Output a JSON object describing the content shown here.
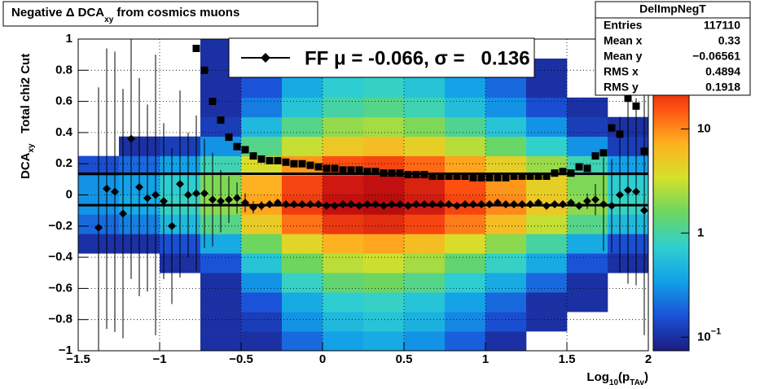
{
  "chart_data": {
    "type": "heatmap-profile",
    "title": [
      "Negative Δ DCA",
      "xy",
      " from cosmics muons"
    ],
    "xlabel": [
      "Log",
      "10",
      "(p",
      "TAv",
      ")"
    ],
    "ylabel": [
      "DCA",
      "xy",
      "   Total chi2 Cut"
    ],
    "xlim": [
      -1.5,
      2
    ],
    "xticks": [
      {
        "value": -1.5,
        "label": "−1.5"
      },
      {
        "value": -1,
        "label": "−1"
      },
      {
        "value": -0.5,
        "label": "−0.5"
      },
      0,
      0.5,
      1,
      1.5,
      2
    ],
    "ylim": [
      -1,
      1
    ],
    "yticks": [
      {
        "value": -1,
        "label": "−1"
      },
      {
        "value": -0.8,
        "label": "−0.8"
      },
      {
        "value": -0.6,
        "label": "−0.6"
      },
      {
        "value": -0.4,
        "label": "−0.4"
      },
      {
        "value": -0.2,
        "label": "−0.2"
      },
      0,
      0.2,
      0.4,
      0.6,
      0.8,
      1
    ],
    "grid": true,
    "zlim": [
      0.074,
      73
    ],
    "zlog": true,
    "zticks": [
      {
        "value": 0.1,
        "label": "10",
        "exponent": "−1"
      },
      1,
      10
    ],
    "palette": [
      "#1b1b80",
      "#1a52d8",
      "#12a0e8",
      "#2fd0d0",
      "#6cd660",
      "#d6e02a",
      "#ffb020",
      "#ff5010",
      "#c81010",
      "#7a0000"
    ],
    "heatmap": {
      "xbins": [
        -1.5,
        -1.25,
        -1,
        -0.75,
        -0.5,
        -0.25,
        0,
        0.25,
        0.5,
        0.75,
        1,
        1.25,
        1.5,
        1.75,
        2
      ],
      "ybins": [
        -1,
        -0.875,
        -0.75,
        -0.625,
        -0.5,
        -0.375,
        -0.25,
        -0.125,
        0,
        0.125,
        0.25,
        0.375,
        0.5,
        0.625,
        0.75,
        0.875,
        1
      ],
      "z": [
        [
          0,
          0,
          0,
          0,
          0,
          0.1,
          0.2,
          0.3,
          0.3,
          0.15,
          0,
          0,
          0,
          0,
          0,
          0
        ],
        [
          0,
          0,
          0,
          0,
          0,
          0.1,
          0.25,
          0.4,
          0.35,
          0.2,
          0.1,
          0,
          0,
          0,
          0,
          0
        ],
        [
          0,
          0,
          0,
          0,
          0.1,
          0.15,
          0.5,
          0.8,
          0.7,
          0.35,
          0.12,
          0,
          0,
          0,
          0,
          0
        ],
        [
          0.1,
          0.1,
          0.1,
          0.1,
          0.16,
          0.4,
          1.2,
          2,
          1.8,
          0.9,
          0.3,
          0.12,
          0.1,
          0.1,
          0.1,
          0.1
        ],
        [
          0.1,
          0.12,
          0.16,
          0.3,
          0.6,
          1.6,
          4.8,
          8,
          7.2,
          3.6,
          1.2,
          0.5,
          0.24,
          0.16,
          0.12,
          0.1
        ],
        [
          0.2,
          0.3,
          0.4,
          0.8,
          1.6,
          4,
          12,
          20,
          18,
          9,
          3,
          1.2,
          0.6,
          0.4,
          0.3,
          0.2
        ],
        [
          0.35,
          0.5,
          0.7,
          1.4,
          2.8,
          7,
          21,
          35,
          31,
          16,
          5,
          2.1,
          1,
          0.7,
          0.5,
          0.35
        ],
        [
          0.4,
          0.6,
          0.8,
          1.6,
          3.2,
          8,
          24,
          40,
          36,
          18,
          6,
          2.4,
          1.2,
          0.8,
          0.6,
          0.4
        ],
        [
          0.3,
          0.45,
          0.6,
          1.2,
          2.4,
          6,
          18,
          30,
          27,
          13,
          4.5,
          1.8,
          0.9,
          0.6,
          0.45,
          0.3
        ],
        [
          0.18,
          0.27,
          0.36,
          0.7,
          1.4,
          3.6,
          11,
          18,
          16,
          8,
          2.7,
          1.1,
          0.54,
          0.36,
          0.27,
          0.18
        ],
        [
          0.1,
          0.15,
          0.2,
          0.4,
          0.8,
          2,
          6,
          10,
          9,
          4.5,
          1.5,
          0.6,
          0.3,
          0.2,
          0.15,
          0.1
        ],
        [
          0,
          0.1,
          0.1,
          0.2,
          0.4,
          1,
          3,
          5,
          4.5,
          2.2,
          0.75,
          0.3,
          0.15,
          0.1,
          0.1,
          0
        ],
        [
          0,
          0,
          0.1,
          0.1,
          0.16,
          0.4,
          1.2,
          2,
          1.8,
          0.9,
          0.3,
          0.12,
          0.1,
          0,
          0,
          0
        ],
        [
          0,
          0,
          0,
          0,
          0.1,
          0.15,
          0.5,
          0.8,
          0.7,
          0.35,
          0.12,
          0.1,
          0,
          0,
          0,
          0
        ]
      ]
    },
    "x": [
      -1.375,
      -1.325,
      -1.275,
      -1.225,
      -1.175,
      -1.125,
      -1.075,
      -1.025,
      -0.975,
      -0.925,
      -0.875,
      -0.825,
      -0.775,
      -0.725,
      -0.675,
      -0.625,
      -0.575,
      -0.525,
      -0.475,
      -0.425,
      -0.375,
      -0.325,
      -0.275,
      -0.225,
      -0.175,
      -0.125,
      -0.075,
      -0.025,
      0.025,
      0.075,
      0.125,
      0.175,
      0.225,
      0.275,
      0.325,
      0.375,
      0.425,
      0.475,
      0.525,
      0.575,
      0.625,
      0.675,
      0.725,
      0.775,
      0.825,
      0.875,
      0.925,
      0.975,
      1.025,
      1.075,
      1.125,
      1.175,
      1.225,
      1.275,
      1.325,
      1.375,
      1.425,
      1.475,
      1.525,
      1.575,
      1.625,
      1.675,
      1.725,
      1.775,
      1.825,
      1.875,
      1.925,
      1.975
    ],
    "series": [
      {
        "marker": "diamond",
        "color": "#000000",
        "values": [
          -0.21,
          0.04,
          0.02,
          -0.12,
          0.36,
          0.05,
          -0.02,
          0,
          -0.04,
          -0.2,
          0.07,
          0,
          0.01,
          0.01,
          -0.03,
          -0.04,
          -0.03,
          -0.02,
          -0.05,
          -0.08,
          -0.07,
          -0.06,
          -0.05,
          -0.06,
          -0.06,
          -0.06,
          -0.06,
          -0.06,
          -0.07,
          -0.07,
          -0.06,
          -0.06,
          -0.07,
          -0.06,
          -0.06,
          -0.07,
          -0.06,
          -0.06,
          -0.07,
          -0.06,
          -0.06,
          -0.06,
          -0.06,
          -0.06,
          -0.07,
          -0.06,
          -0.06,
          -0.06,
          -0.06,
          -0.05,
          -0.06,
          -0.06,
          -0.06,
          -0.06,
          -0.05,
          -0.07,
          -0.06,
          -0.06,
          -0.05,
          -0.07,
          -0.04,
          -0.03,
          -0.06,
          -0.07,
          0,
          0.03,
          0.02,
          -0.1
        ],
        "errors": [
          0.9,
          0.9,
          0.9,
          0.8,
          0.9,
          0.7,
          0.6,
          0.9,
          0.5,
          0.5,
          0.6,
          0.4,
          0.5,
          0.35,
          0.3,
          0.2,
          0.15,
          0.1,
          0.06,
          0.04,
          0.03,
          0.02,
          0.02,
          0.02,
          0.02,
          0.02,
          0.02,
          0.02,
          0.02,
          0.02,
          0.02,
          0.02,
          0.02,
          0.02,
          0.02,
          0.02,
          0.02,
          0.02,
          0.02,
          0.02,
          0.02,
          0.02,
          0.02,
          0.02,
          0.02,
          0.02,
          0.02,
          0.02,
          0.02,
          0.02,
          0.02,
          0.02,
          0.02,
          0.02,
          0.02,
          0.02,
          0.02,
          0.02,
          0.02,
          0.02,
          0.05,
          0.1,
          0.3,
          0.3,
          0.5,
          0.6,
          0.6,
          0.8
        ]
      },
      {
        "marker": "square",
        "color": "#000000",
        "values": [
          null,
          null,
          null,
          null,
          null,
          null,
          null,
          null,
          null,
          null,
          null,
          null,
          0.94,
          0.8,
          0.6,
          0.48,
          0.37,
          0.31,
          0.29,
          0.25,
          0.23,
          0.22,
          0.22,
          0.21,
          0.2,
          0.2,
          0.19,
          0.18,
          0.17,
          0.17,
          0.16,
          0.16,
          0.16,
          0.15,
          0.15,
          0.14,
          0.14,
          0.14,
          0.13,
          0.13,
          0.13,
          0.12,
          0.12,
          0.12,
          0.12,
          0.12,
          0.11,
          0.11,
          0.11,
          0.11,
          0.11,
          0.12,
          0.12,
          0.12,
          0.12,
          0.12,
          0.14,
          0.15,
          0.14,
          0.18,
          0.17,
          0.25,
          0.27,
          0.43,
          0.39,
          0.62,
          0.57,
          0.28
        ]
      }
    ],
    "fit": {
      "mean": -0.066,
      "sigma": 0.136,
      "color": "#000000"
    },
    "legend_text": "FF μ = -0.066, σ =   0.136",
    "stats": {
      "name": "DelImpNegT",
      "rows": [
        [
          "Entries",
          "117110"
        ],
        [
          "Mean x",
          "0.33"
        ],
        [
          "Mean y",
          "−0.06561"
        ],
        [
          "RMS x",
          "0.4894"
        ],
        [
          "RMS y",
          "0.1918"
        ]
      ]
    }
  }
}
